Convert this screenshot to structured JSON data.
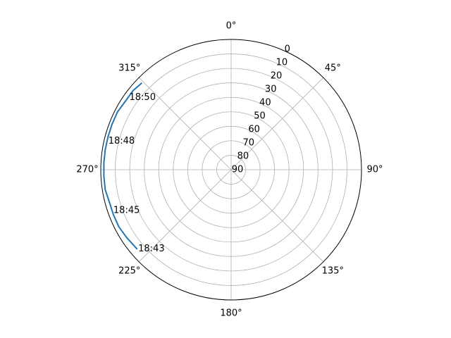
{
  "chart_data": {
    "type": "line",
    "projection": "polar",
    "theta_direction": "clockwise",
    "theta_zero": "top",
    "theta_ticks": [
      {
        "value": 0,
        "label": "0°"
      },
      {
        "value": 45,
        "label": "45°"
      },
      {
        "value": 90,
        "label": "90°"
      },
      {
        "value": 135,
        "label": "135°"
      },
      {
        "value": 180,
        "label": "180°"
      },
      {
        "value": 225,
        "label": "225°"
      },
      {
        "value": 270,
        "label": "270°"
      },
      {
        "value": 315,
        "label": "315°"
      }
    ],
    "r_ticks": [
      {
        "value": 0,
        "label": "0"
      },
      {
        "value": 10,
        "label": "10"
      },
      {
        "value": 20,
        "label": "20"
      },
      {
        "value": 30,
        "label": "30"
      },
      {
        "value": 40,
        "label": "40"
      },
      {
        "value": 50,
        "label": "50"
      },
      {
        "value": 60,
        "label": "60"
      },
      {
        "value": 70,
        "label": "70"
      },
      {
        "value": 80,
        "label": "80"
      },
      {
        "value": 90,
        "label": "90"
      }
    ],
    "r_range": [
      90,
      0
    ],
    "r_tick_label_angle": 22.5,
    "grid": true,
    "color": "#1f77b4",
    "series": [
      {
        "azimuth": [
          230,
          237,
          243,
          249,
          255,
          261,
          267,
          273,
          279,
          285,
          291,
          297,
          303,
          309,
          314
        ],
        "elevation": [
          5,
          4,
          3,
          3,
          3,
          2,
          2,
          2,
          2,
          2,
          2,
          2,
          3,
          3,
          4
        ]
      }
    ],
    "annotations": [
      {
        "text": "18:43",
        "azimuth": 230,
        "elevation": 5
      },
      {
        "text": "18:45",
        "azimuth": 251,
        "elevation": 3
      },
      {
        "text": "18:48",
        "azimuth": 283,
        "elevation": 2
      },
      {
        "text": "18:50",
        "azimuth": 305,
        "elevation": 3
      }
    ]
  }
}
